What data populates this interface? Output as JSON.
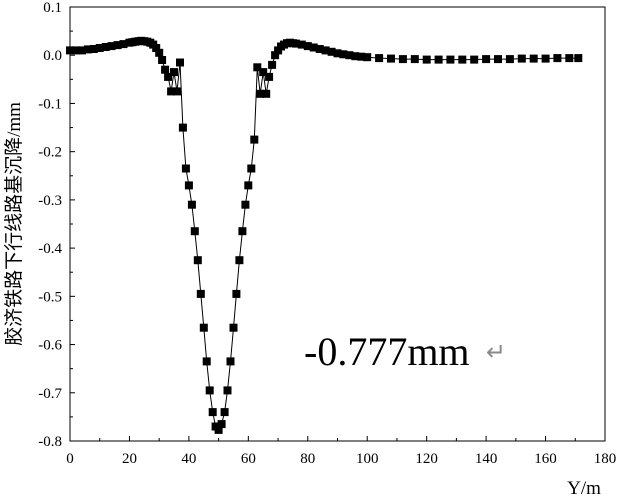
{
  "chart_data": {
    "type": "line",
    "title": "",
    "xlabel": "Y/m",
    "ylabel": "胶济铁路下行线路基沉降/mm",
    "xlim": [
      0,
      180
    ],
    "ylim": [
      -0.8,
      0.1
    ],
    "x_ticks": [
      "0",
      "20",
      "40",
      "60",
      "80",
      "100",
      "120",
      "140",
      "160",
      "180"
    ],
    "y_ticks": [
      "0.1",
      "0.0",
      "-0.1",
      "-0.2",
      "-0.3",
      "-0.4",
      "-0.5",
      "-0.6",
      "-0.7",
      "-0.8"
    ],
    "grid": false,
    "legend": "none",
    "marker": "square",
    "color": "#000000",
    "annotation": "-0.777mm",
    "annotation_return_mark": "↵",
    "series": [
      {
        "x": [
          0,
          2,
          4,
          6,
          8,
          10,
          12,
          14,
          16,
          18,
          20,
          21,
          22,
          23,
          24,
          25,
          26,
          27,
          28,
          29,
          30,
          31,
          32,
          33,
          34,
          35,
          36,
          37,
          38,
          39,
          40,
          41,
          42,
          43,
          44,
          45,
          46,
          47,
          48,
          49,
          50,
          51,
          52,
          53,
          54,
          55,
          56,
          57,
          58,
          59,
          60,
          61,
          62,
          63,
          64,
          65,
          66,
          67,
          68,
          69,
          70,
          71,
          72,
          73,
          74,
          75,
          76,
          78,
          80,
          82,
          84,
          86,
          88,
          90,
          92,
          94,
          96,
          98,
          100,
          104,
          108,
          112,
          116,
          120,
          124,
          128,
          132,
          136,
          140,
          144,
          148,
          152,
          156,
          160,
          164,
          168,
          171
        ],
        "y": [
          0.01,
          0.01,
          0.01,
          0.012,
          0.013,
          0.015,
          0.017,
          0.019,
          0.021,
          0.023,
          0.026,
          0.027,
          0.028,
          0.029,
          0.03,
          0.029,
          0.028,
          0.026,
          0.022,
          0.015,
          0.005,
          -0.01,
          -0.03,
          -0.045,
          -0.075,
          -0.035,
          -0.075,
          -0.015,
          -0.15,
          -0.235,
          -0.27,
          -0.31,
          -0.365,
          -0.425,
          -0.495,
          -0.565,
          -0.635,
          -0.695,
          -0.74,
          -0.77,
          -0.777,
          -0.765,
          -0.74,
          -0.695,
          -0.635,
          -0.565,
          -0.495,
          -0.425,
          -0.365,
          -0.31,
          -0.27,
          -0.235,
          -0.175,
          -0.025,
          -0.08,
          -0.035,
          -0.08,
          -0.045,
          -0.02,
          0.0,
          0.01,
          0.018,
          0.022,
          0.025,
          0.026,
          0.025,
          0.024,
          0.022,
          0.019,
          0.016,
          0.013,
          0.01,
          0.007,
          0.004,
          0.002,
          0.0,
          -0.002,
          -0.003,
          -0.004,
          -0.006,
          -0.007,
          -0.008,
          -0.008,
          -0.009,
          -0.009,
          -0.009,
          -0.009,
          -0.009,
          -0.008,
          -0.008,
          -0.008,
          -0.007,
          -0.007,
          -0.007,
          -0.006,
          -0.006,
          -0.006
        ]
      }
    ]
  }
}
